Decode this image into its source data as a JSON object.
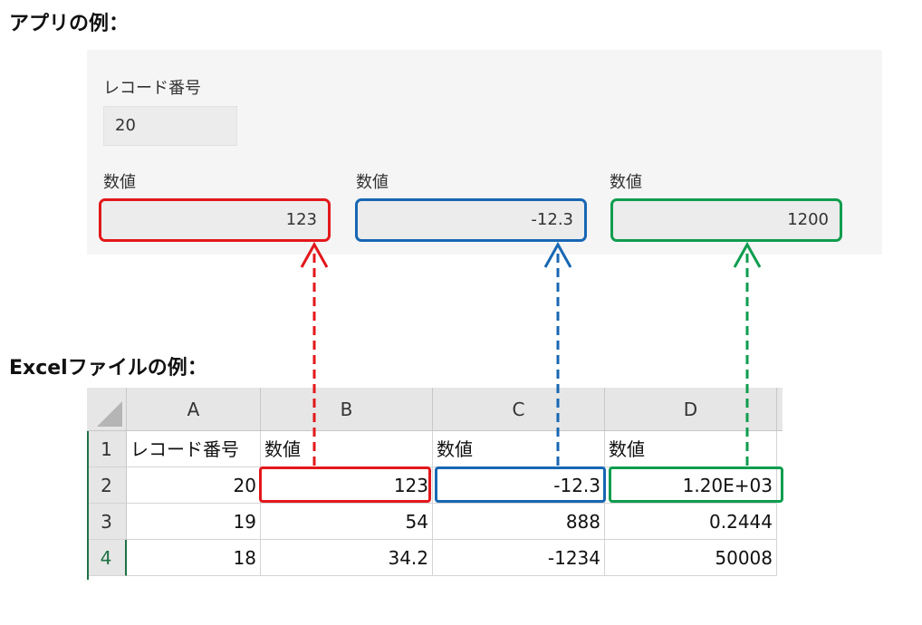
{
  "headings": {
    "app": "アプリの例：",
    "excel": "Excelファイルの例："
  },
  "app": {
    "record_label": "レコード番号",
    "record_value": "20",
    "fields": [
      {
        "label": "数値",
        "value": "123"
      },
      {
        "label": "数値",
        "value": "-12.3"
      },
      {
        "label": "数値",
        "value": "1200"
      }
    ]
  },
  "sheet": {
    "columns": [
      "A",
      "B",
      "C",
      "D"
    ],
    "rows": [
      {
        "num": "1",
        "cells": [
          "レコード番号",
          "数値",
          "数値",
          "数値"
        ]
      },
      {
        "num": "2",
        "cells": [
          "20",
          "123",
          "-12.3",
          "1.20E+03"
        ]
      },
      {
        "num": "3",
        "cells": [
          "19",
          "54",
          "888",
          "0.2444"
        ]
      },
      {
        "num": "4",
        "cells": [
          "18",
          "34.2",
          "-1234",
          "50008"
        ]
      }
    ]
  },
  "colors": {
    "red": "#e3171b",
    "blue": "#1767b3",
    "green": "#0f9d4f",
    "excel_accent": "#1e7145"
  }
}
